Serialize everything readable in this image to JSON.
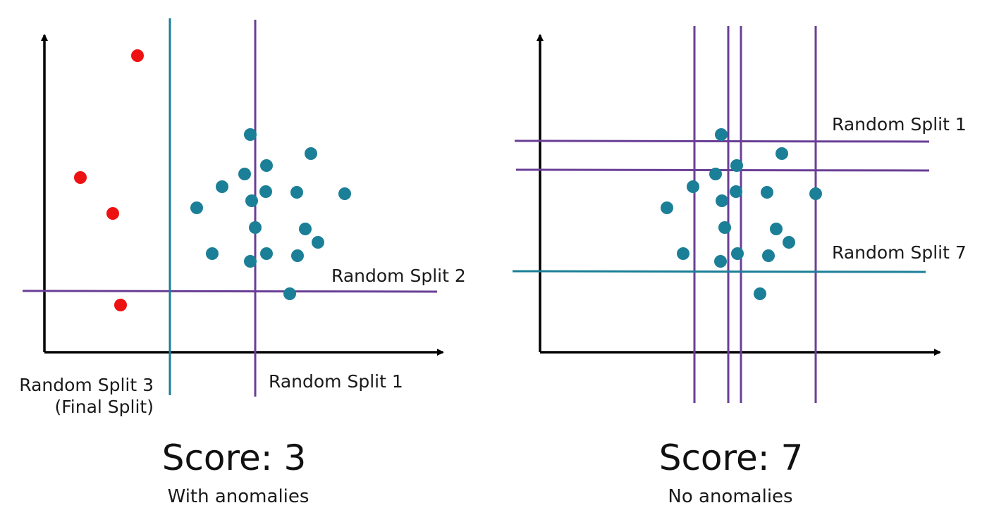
{
  "colors": {
    "normal_point": "#1b7f97",
    "anomaly_point": "#ee1111",
    "purple_split": "#6a3f96",
    "teal_split": "#1b7f97",
    "axis": "#000000"
  },
  "left_panel": {
    "labels": {
      "split_2": "Random Split 2",
      "split_3": "Random Split 3",
      "split_3_note": "(Final Split)",
      "split_1": "Random Split 1"
    },
    "score": "Score: 3",
    "caption": "With anomalies",
    "normal_point_count": 19,
    "anomaly_point_count": 4
  },
  "right_panel": {
    "labels": {
      "split_1": "Random Split 1",
      "split_7": "Random Split 7"
    },
    "score": "Score: 7",
    "caption": "No anomalies",
    "normal_point_count": 20
  }
}
